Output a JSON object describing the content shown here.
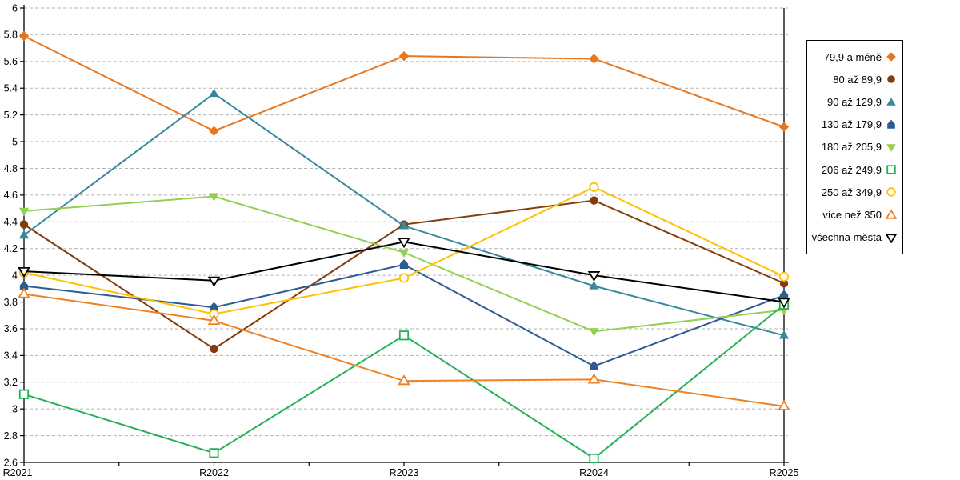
{
  "chart_data": {
    "type": "line",
    "title": "",
    "xlabel": "",
    "ylabel": "",
    "categories": [
      "R2021",
      "R2022",
      "R2023",
      "R2024",
      "R2025"
    ],
    "y_axis": {
      "min": 2.6,
      "max": 6.0,
      "step": 0.2,
      "tick_labels": [
        "6",
        "5.8",
        "5.6",
        "5.4",
        "5.2",
        "5",
        "4.8",
        "4.6",
        "4.4",
        "4.2",
        "4",
        "3.8",
        "3.6",
        "3.4",
        "3.2",
        "3",
        "2.8",
        "2.6"
      ]
    },
    "grid": "horizontal-dashed",
    "legend_position": "right",
    "series": [
      {
        "name": "79,9 a méně",
        "marker": "diamond",
        "marker_fill": "solid",
        "color": "#E8761D",
        "values": [
          5.79,
          5.08,
          5.64,
          5.62,
          5.11
        ]
      },
      {
        "name": "80 až 89,9",
        "marker": "circle",
        "marker_fill": "solid",
        "color": "#843C0C",
        "values": [
          4.38,
          3.45,
          4.38,
          4.56,
          3.94
        ]
      },
      {
        "name": "90 až 129,9",
        "marker": "triangle-up",
        "marker_fill": "solid",
        "color": "#35889E",
        "values": [
          4.3,
          5.36,
          4.37,
          3.92,
          3.55
        ]
      },
      {
        "name": "130 až 179,9",
        "marker": "pentagon",
        "marker_fill": "solid",
        "color": "#2F5B93",
        "values": [
          3.92,
          3.76,
          4.08,
          3.32,
          3.85
        ]
      },
      {
        "name": "180 až 205,9",
        "marker": "triangle-down",
        "marker_fill": "solid",
        "color": "#92D050",
        "values": [
          4.48,
          4.59,
          4.17,
          3.58,
          3.74
        ]
      },
      {
        "name": "206 až 249,9",
        "marker": "square",
        "marker_fill": "open",
        "color": "#26B158",
        "values": [
          3.11,
          2.67,
          3.55,
          2.63,
          3.78
        ]
      },
      {
        "name": "250 až 349,9",
        "marker": "circle",
        "marker_fill": "open",
        "color": "#FFC000",
        "values": [
          4.02,
          3.71,
          3.98,
          4.66,
          3.99
        ]
      },
      {
        "name": "více než 350",
        "marker": "triangle-up",
        "marker_fill": "open",
        "color": "#F08122",
        "values": [
          3.86,
          3.66,
          3.21,
          3.22,
          3.02
        ]
      },
      {
        "name": "všechna města",
        "marker": "triangle-down",
        "marker_fill": "open",
        "color": "#000000",
        "values": [
          4.03,
          3.96,
          4.25,
          4.0,
          3.8
        ]
      }
    ],
    "colors": {
      "gridline": "#B3B3B3",
      "axis": "#000000",
      "background": "#FFFFFF"
    }
  }
}
